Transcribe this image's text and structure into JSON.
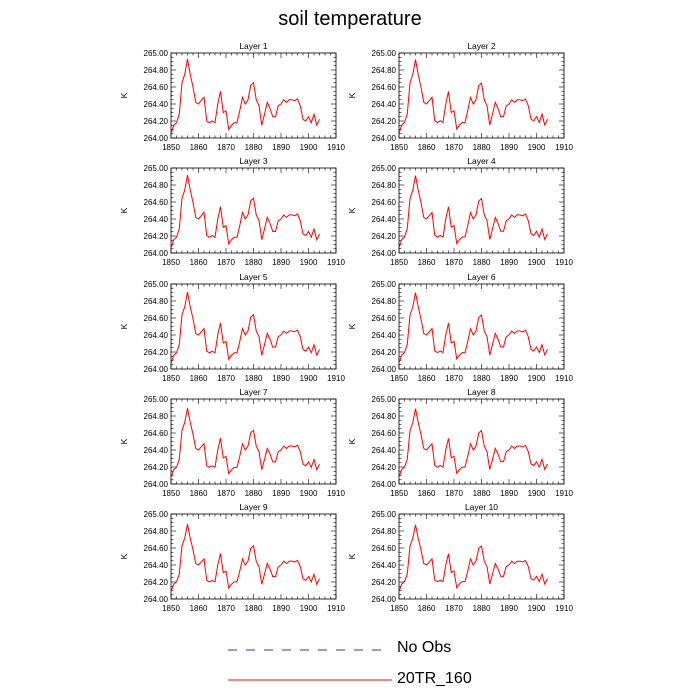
{
  "title": "soil temperature",
  "legend": [
    {
      "label": "No Obs",
      "color": "#3333aa",
      "style": "dashed"
    },
    {
      "label": "20TR_160",
      "color": "#ff0000",
      "style": "solid"
    }
  ],
  "chart_data": {
    "type": "line",
    "ylabel": "K",
    "xlim": [
      1850,
      1910
    ],
    "ylim": [
      264.0,
      265.0
    ],
    "x_ticks": [
      1850,
      1860,
      1870,
      1880,
      1890,
      1900,
      1910
    ],
    "y_ticks": [
      "264.00",
      "264.20",
      "264.40",
      "264.60",
      "264.80",
      "265.00"
    ],
    "line_color": "#ff0000",
    "x": [
      1850,
      1851,
      1852,
      1853,
      1854,
      1855,
      1856,
      1857,
      1858,
      1859,
      1860,
      1861,
      1862,
      1863,
      1864,
      1865,
      1866,
      1867,
      1868,
      1869,
      1870,
      1871,
      1872,
      1873,
      1874,
      1875,
      1876,
      1877,
      1878,
      1879,
      1880,
      1881,
      1882,
      1883,
      1884,
      1885,
      1886,
      1887,
      1888,
      1889,
      1890,
      1891,
      1892,
      1893,
      1894,
      1895,
      1896,
      1897,
      1898,
      1899,
      1900,
      1901,
      1902,
      1903,
      1904
    ],
    "panels": [
      {
        "title": "Layer 1",
        "peak": 264.93
      },
      {
        "title": "Layer 2",
        "peak": 264.92
      },
      {
        "title": "Layer 3",
        "peak": 264.91
      },
      {
        "title": "Layer 4",
        "peak": 264.89
      },
      {
        "title": "Layer 5",
        "peak": 264.88
      },
      {
        "title": "Layer 6",
        "peak": 264.87
      },
      {
        "title": "Layer 7",
        "peak": 264.86
      },
      {
        "title": "Layer 8",
        "peak": 264.84
      },
      {
        "title": "Layer 9",
        "peak": 264.83
      },
      {
        "title": "Layer 10",
        "peak": 264.82
      }
    ],
    "base_values": [
      264.05,
      264.15,
      264.18,
      264.28,
      264.65,
      264.75,
      264.93,
      264.75,
      264.6,
      264.42,
      264.4,
      264.44,
      264.48,
      264.2,
      264.18,
      264.2,
      264.18,
      264.4,
      264.55,
      264.3,
      264.32,
      264.1,
      264.15,
      264.18,
      264.18,
      264.32,
      264.48,
      264.4,
      264.45,
      264.62,
      264.65,
      264.45,
      264.38,
      264.15,
      264.28,
      264.42,
      264.35,
      264.25,
      264.25,
      264.38,
      264.4,
      264.45,
      264.42,
      264.45,
      264.45,
      264.44,
      264.46,
      264.38,
      264.22,
      264.2,
      264.25,
      264.18,
      264.28,
      264.15,
      264.22
    ]
  }
}
